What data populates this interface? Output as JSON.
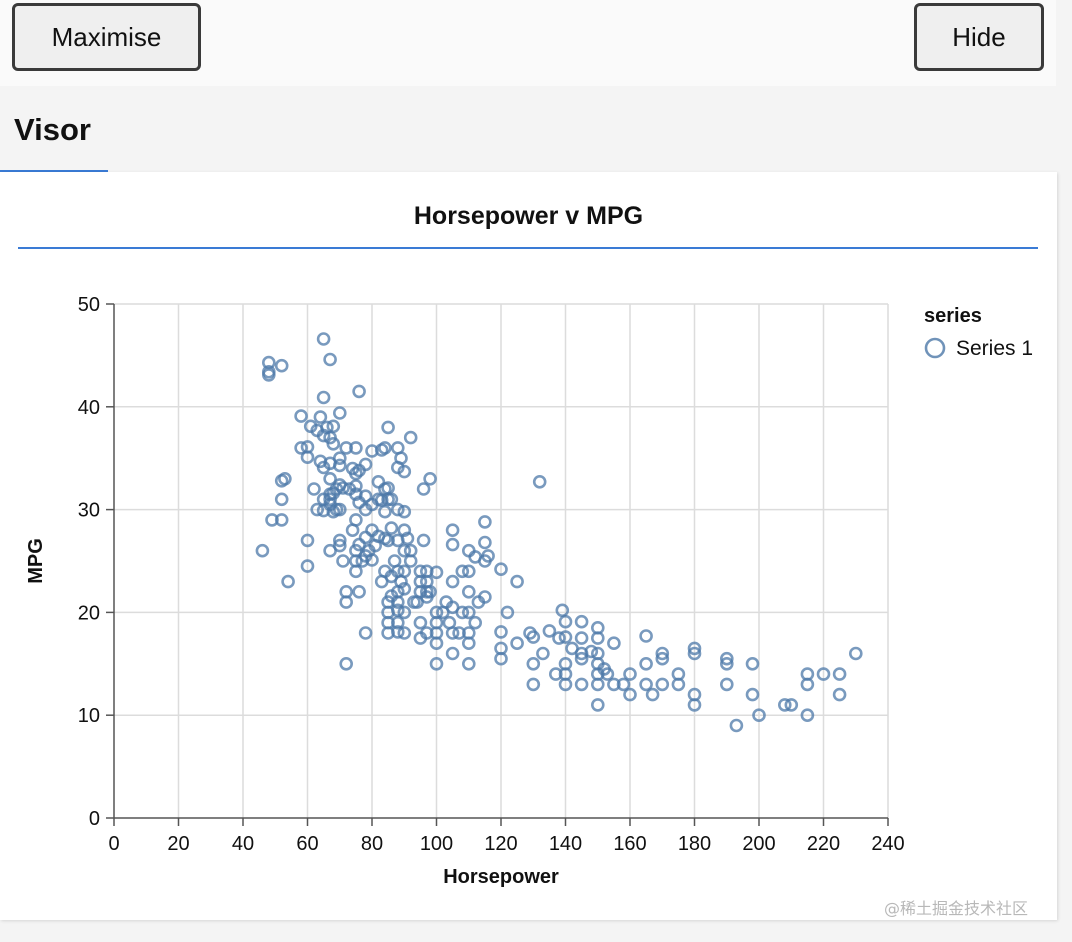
{
  "toolbar": {
    "maximise_label": "Maximise",
    "hide_label": "Hide"
  },
  "tabs": [
    {
      "label": "Visor",
      "active": true
    }
  ],
  "card": {
    "title": "Horsepower v MPG"
  },
  "watermark": "@稀土掘金技术社区",
  "colors": {
    "accent": "#3a7bd5",
    "point_stroke": "#4c78a8"
  },
  "chart_data": {
    "type": "scatter",
    "title": "Horsepower v MPG",
    "xlabel": "Horsepower",
    "ylabel": "MPG",
    "xlim": [
      0,
      240
    ],
    "ylim": [
      0,
      50
    ],
    "xticks": [
      0,
      20,
      40,
      60,
      80,
      100,
      120,
      140,
      160,
      180,
      200,
      220,
      240
    ],
    "yticks": [
      0,
      10,
      20,
      30,
      40,
      50
    ],
    "grid": true,
    "legend": {
      "title": "series",
      "placement": "right"
    },
    "series": [
      {
        "name": "Series 1",
        "color": "#4c78a8",
        "points": [
          [
            46,
            26
          ],
          [
            48,
            44.3
          ],
          [
            48,
            43.4
          ],
          [
            48,
            43.1
          ],
          [
            49,
            29
          ],
          [
            52,
            44
          ],
          [
            52,
            32.8
          ],
          [
            52,
            31
          ],
          [
            52,
            29
          ],
          [
            53,
            33
          ],
          [
            54,
            23
          ],
          [
            58,
            39.1
          ],
          [
            58,
            36
          ],
          [
            60,
            36.1
          ],
          [
            60,
            35.1
          ],
          [
            60,
            27
          ],
          [
            60,
            24.5
          ],
          [
            61,
            38.1
          ],
          [
            62,
            32
          ],
          [
            63,
            37.7
          ],
          [
            63,
            30
          ],
          [
            64,
            39
          ],
          [
            64,
            34.7
          ],
          [
            65,
            46.6
          ],
          [
            65,
            40.9
          ],
          [
            65,
            37.2
          ],
          [
            65,
            34.1
          ],
          [
            65,
            31
          ],
          [
            65,
            29.9
          ],
          [
            66,
            38
          ],
          [
            67,
            44.6
          ],
          [
            67,
            37
          ],
          [
            67,
            34.5
          ],
          [
            67,
            33
          ],
          [
            67,
            31.5
          ],
          [
            67,
            31
          ],
          [
            67,
            30.5
          ],
          [
            67,
            26
          ],
          [
            68,
            38.1
          ],
          [
            68,
            36.4
          ],
          [
            68,
            29.8
          ],
          [
            68,
            31.6
          ],
          [
            69,
            32
          ],
          [
            69,
            30
          ],
          [
            70,
            39.4
          ],
          [
            70,
            35
          ],
          [
            70,
            34.3
          ],
          [
            70,
            32.4
          ],
          [
            70,
            30
          ],
          [
            70,
            26.5
          ],
          [
            70,
            27
          ],
          [
            71,
            32.1
          ],
          [
            71,
            25
          ],
          [
            72,
            36
          ],
          [
            72,
            22
          ],
          [
            72,
            21
          ],
          [
            72,
            15
          ],
          [
            73,
            32
          ],
          [
            74,
            34
          ],
          [
            74,
            28
          ],
          [
            75,
            36
          ],
          [
            75,
            33.5
          ],
          [
            75,
            32.3
          ],
          [
            75,
            31.5
          ],
          [
            75,
            29
          ],
          [
            75,
            26
          ],
          [
            75,
            25
          ],
          [
            75,
            24
          ],
          [
            76,
            41.5
          ],
          [
            76,
            33.8
          ],
          [
            76,
            30.7
          ],
          [
            76,
            26.6
          ],
          [
            76,
            22
          ],
          [
            77,
            25
          ],
          [
            78,
            34.4
          ],
          [
            78,
            31.3
          ],
          [
            78,
            30
          ],
          [
            78,
            27.3
          ],
          [
            78,
            25.5
          ],
          [
            78,
            18
          ],
          [
            79,
            26
          ],
          [
            80,
            35.7
          ],
          [
            80,
            30.5
          ],
          [
            80,
            28
          ],
          [
            80,
            25.1
          ],
          [
            81,
            26.5
          ],
          [
            82,
            32.7
          ],
          [
            82,
            31
          ],
          [
            82,
            27.4
          ],
          [
            83,
            35.8
          ],
          [
            83,
            30.9
          ],
          [
            83,
            23
          ],
          [
            84,
            36
          ],
          [
            84,
            32
          ],
          [
            84,
            29.8
          ],
          [
            84,
            27.2
          ],
          [
            84,
            24
          ],
          [
            85,
            38
          ],
          [
            85,
            32.1
          ],
          [
            85,
            31
          ],
          [
            85,
            27
          ],
          [
            85,
            21
          ],
          [
            85,
            20
          ],
          [
            85,
            19
          ],
          [
            85,
            18
          ],
          [
            86,
            31
          ],
          [
            86,
            28.2
          ],
          [
            86,
            23.5
          ],
          [
            86,
            21.6
          ],
          [
            87,
            25
          ],
          [
            88,
            36
          ],
          [
            88,
            34.1
          ],
          [
            88,
            30
          ],
          [
            88,
            27
          ],
          [
            88,
            24
          ],
          [
            88,
            22
          ],
          [
            88,
            21
          ],
          [
            88,
            20.2
          ],
          [
            88,
            19
          ],
          [
            88,
            18.1
          ],
          [
            89,
            35
          ],
          [
            89,
            23
          ],
          [
            90,
            33.7
          ],
          [
            90,
            29.8
          ],
          [
            90,
            28
          ],
          [
            90,
            26
          ],
          [
            90,
            24
          ],
          [
            90,
            22.3
          ],
          [
            90,
            20
          ],
          [
            90,
            18
          ],
          [
            91,
            27.2
          ],
          [
            92,
            37
          ],
          [
            92,
            26
          ],
          [
            92,
            25
          ],
          [
            93,
            21
          ],
          [
            94,
            21
          ],
          [
            95,
            24
          ],
          [
            95,
            23
          ],
          [
            95,
            22
          ],
          [
            95,
            19
          ],
          [
            95,
            17.5
          ],
          [
            96,
            32
          ],
          [
            96,
            27
          ],
          [
            97,
            24
          ],
          [
            97,
            23
          ],
          [
            97,
            22
          ],
          [
            97,
            21.5
          ],
          [
            97,
            18
          ],
          [
            98,
            33
          ],
          [
            98,
            22
          ],
          [
            100,
            23.9
          ],
          [
            100,
            20
          ],
          [
            100,
            19
          ],
          [
            100,
            18
          ],
          [
            100,
            17
          ],
          [
            100,
            15
          ],
          [
            102,
            20
          ],
          [
            103,
            21
          ],
          [
            104,
            19
          ],
          [
            105,
            28
          ],
          [
            105,
            26.6
          ],
          [
            105,
            23
          ],
          [
            105,
            20.5
          ],
          [
            105,
            18
          ],
          [
            105,
            16
          ],
          [
            107,
            18
          ],
          [
            108,
            24
          ],
          [
            108,
            20
          ],
          [
            110,
            26
          ],
          [
            110,
            24
          ],
          [
            110,
            22
          ],
          [
            110,
            20
          ],
          [
            110,
            18
          ],
          [
            110,
            17
          ],
          [
            110,
            15
          ],
          [
            112,
            19
          ],
          [
            112,
            25.4
          ],
          [
            113,
            21
          ],
          [
            115,
            28.8
          ],
          [
            115,
            26.8
          ],
          [
            115,
            25
          ],
          [
            115,
            21.5
          ],
          [
            116,
            25.5
          ],
          [
            120,
            24.2
          ],
          [
            120,
            18.1
          ],
          [
            120,
            16.5
          ],
          [
            120,
            15.5
          ],
          [
            122,
            20
          ],
          [
            125,
            23
          ],
          [
            125,
            17
          ],
          [
            129,
            18
          ],
          [
            130,
            17.6
          ],
          [
            130,
            15
          ],
          [
            130,
            13
          ],
          [
            132,
            32.7
          ],
          [
            133,
            16
          ],
          [
            135,
            18.2
          ],
          [
            137,
            14
          ],
          [
            138,
            17.5
          ],
          [
            139,
            20.2
          ],
          [
            140,
            19.1
          ],
          [
            140,
            17.6
          ],
          [
            140,
            15
          ],
          [
            140,
            14
          ],
          [
            140,
            13
          ],
          [
            142,
            16.5
          ],
          [
            145,
            19.1
          ],
          [
            145,
            17.5
          ],
          [
            145,
            16
          ],
          [
            145,
            15.5
          ],
          [
            145,
            13
          ],
          [
            148,
            16.2
          ],
          [
            150,
            18.5
          ],
          [
            150,
            17.5
          ],
          [
            150,
            16
          ],
          [
            150,
            15
          ],
          [
            150,
            14
          ],
          [
            150,
            13
          ],
          [
            150,
            11
          ],
          [
            152,
            14.5
          ],
          [
            153,
            14
          ],
          [
            155,
            17
          ],
          [
            155,
            13
          ],
          [
            158,
            13
          ],
          [
            160,
            14
          ],
          [
            160,
            12
          ],
          [
            165,
            17.7
          ],
          [
            165,
            15
          ],
          [
            165,
            13
          ],
          [
            167,
            12
          ],
          [
            170,
            16
          ],
          [
            170,
            15.5
          ],
          [
            170,
            13
          ],
          [
            175,
            14
          ],
          [
            175,
            13
          ],
          [
            180,
            16.5
          ],
          [
            180,
            16
          ],
          [
            180,
            12
          ],
          [
            180,
            11
          ],
          [
            190,
            15.5
          ],
          [
            190,
            15
          ],
          [
            190,
            13
          ],
          [
            193,
            9
          ],
          [
            198,
            15
          ],
          [
            198,
            12
          ],
          [
            200,
            10
          ],
          [
            208,
            11
          ],
          [
            210,
            11
          ],
          [
            215,
            14
          ],
          [
            215,
            13
          ],
          [
            215,
            10
          ],
          [
            220,
            14
          ],
          [
            225,
            14
          ],
          [
            225,
            12
          ],
          [
            230,
            16
          ]
        ]
      }
    ]
  }
}
